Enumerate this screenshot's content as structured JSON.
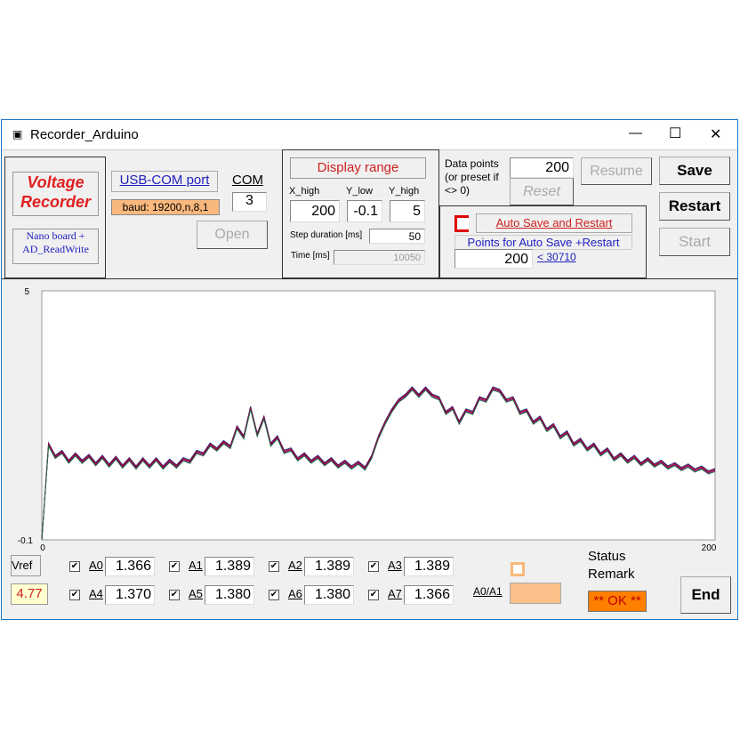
{
  "window": {
    "title": "Recorder_Arduino",
    "minimize": "—",
    "maximize": "☐",
    "close": "✕"
  },
  "brand": {
    "title": "Voltage Recorder",
    "subtitle": "Nano  board + AD_ReadWrite"
  },
  "com": {
    "port_label": "USB-COM port",
    "baud": "baud: 19200,n,8,1",
    "com_label": "COM",
    "com_value": "3",
    "open": "Open"
  },
  "display": {
    "title": "Display range",
    "x_high_label": "X_high",
    "y_low_label": "Y_low",
    "y_high_label": "Y_high",
    "x_high": "200",
    "y_low": "-0.1",
    "y_high": "5",
    "step_label": "Step duration [ms]",
    "step": "50",
    "time_label": "Time [ms]",
    "time": "10050"
  },
  "datapoints": {
    "label": "Data points (or preset if <> 0)",
    "value": "200",
    "reset": "Reset",
    "resume": "Resume"
  },
  "autosave": {
    "label": "Auto Save and Restart",
    "points_label": "Points for Auto Save +Restart",
    "points": "200",
    "max_link": "< 30710",
    "checked": false
  },
  "buttons": {
    "save": "Save",
    "restart": "Restart",
    "start": "Start",
    "end": "End"
  },
  "channels": [
    {
      "name": "A0",
      "value": "1.366"
    },
    {
      "name": "A1",
      "value": "1.389"
    },
    {
      "name": "A2",
      "value": "1.389"
    },
    {
      "name": "A3",
      "value": "1.389"
    },
    {
      "name": "A4",
      "value": "1.370"
    },
    {
      "name": "A5",
      "value": "1.380"
    },
    {
      "name": "A6",
      "value": "1.380"
    },
    {
      "name": "A7",
      "value": "1.366"
    }
  ],
  "vref": {
    "label": "Vref",
    "value": "4.77"
  },
  "ratio": {
    "label": "A0/A1",
    "value": ""
  },
  "status": {
    "label": "Status Remark",
    "value": "** OK **"
  },
  "chart_data": {
    "type": "line",
    "xlim": [
      0,
      200
    ],
    "ylim": [
      -0.1,
      5
    ],
    "x_tick_labels": [
      "0",
      "200"
    ],
    "y_tick_labels": [
      "-0.1",
      "5"
    ],
    "colors": [
      "#1a1a80",
      "#c00000",
      "#7a0080",
      "#207040"
    ],
    "x_step": 2,
    "values": [
      -0.1,
      1.85,
      1.6,
      1.7,
      1.5,
      1.65,
      1.5,
      1.62,
      1.45,
      1.6,
      1.42,
      1.58,
      1.4,
      1.55,
      1.38,
      1.55,
      1.4,
      1.55,
      1.38,
      1.52,
      1.4,
      1.55,
      1.5,
      1.7,
      1.65,
      1.85,
      1.75,
      1.9,
      1.8,
      2.2,
      2.0,
      2.6,
      2.05,
      2.4,
      1.85,
      2.0,
      1.7,
      1.75,
      1.55,
      1.65,
      1.5,
      1.6,
      1.45,
      1.55,
      1.4,
      1.5,
      1.38,
      1.48,
      1.36,
      1.6,
      2.0,
      2.3,
      2.55,
      2.75,
      2.85,
      3.0,
      2.85,
      3.0,
      2.85,
      2.8,
      2.5,
      2.6,
      2.3,
      2.55,
      2.5,
      2.8,
      2.75,
      3.0,
      2.95,
      2.75,
      2.8,
      2.5,
      2.55,
      2.3,
      2.4,
      2.15,
      2.25,
      2.0,
      2.1,
      1.85,
      1.95,
      1.75,
      1.85,
      1.65,
      1.75,
      1.55,
      1.65,
      1.5,
      1.6,
      1.45,
      1.55,
      1.42,
      1.5,
      1.38,
      1.45,
      1.35,
      1.42,
      1.32,
      1.38,
      1.28,
      1.33
    ]
  }
}
